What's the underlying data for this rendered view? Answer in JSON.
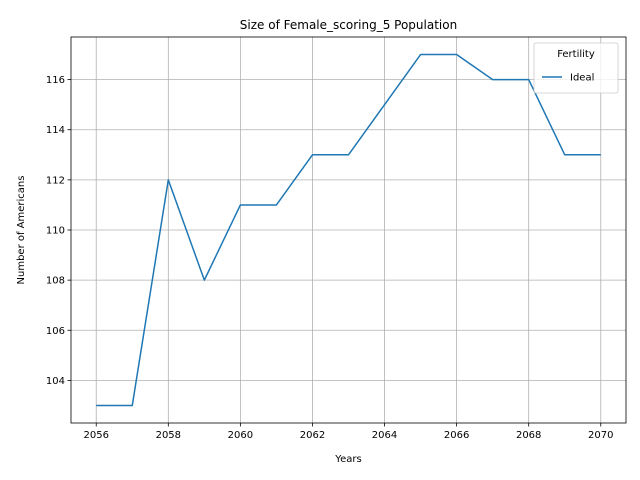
{
  "chart_data": {
    "type": "line",
    "title": "Size of Female_scoring_5 Population",
    "xlabel": "Years",
    "ylabel": "Number of Americans",
    "x": [
      2056,
      2057,
      2058,
      2059,
      2060,
      2061,
      2062,
      2063,
      2064,
      2065,
      2066,
      2067,
      2068,
      2069,
      2070
    ],
    "series": [
      {
        "name": "Ideal",
        "color": "#1f77b4",
        "values": [
          103,
          103,
          112,
          108,
          111,
          111,
          113,
          113,
          115,
          117,
          117,
          116,
          116,
          113,
          113
        ]
      }
    ],
    "xlim": [
      2055.3,
      2070.7
    ],
    "ylim": [
      102.3,
      117.7
    ],
    "xticks": [
      2056,
      2058,
      2060,
      2062,
      2064,
      2066,
      2068,
      2070
    ],
    "yticks": [
      104,
      106,
      108,
      110,
      112,
      114,
      116
    ],
    "grid": true,
    "legend": {
      "title": "Fertility",
      "placement": "top-right"
    }
  }
}
